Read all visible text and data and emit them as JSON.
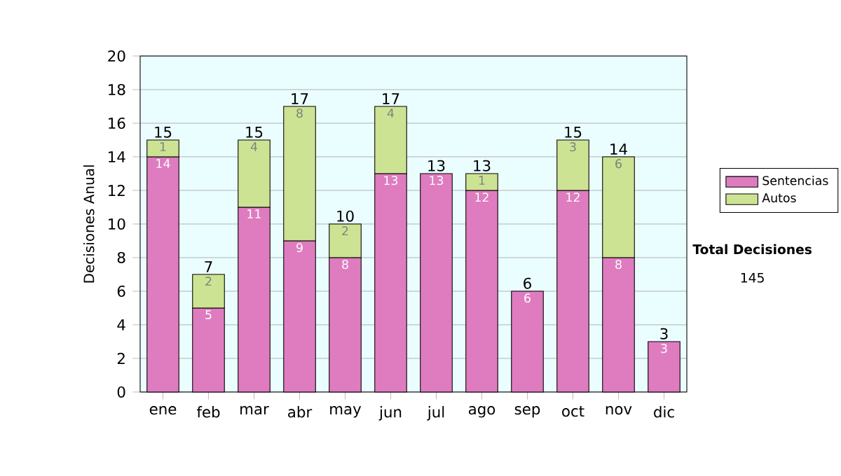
{
  "chart_data": {
    "type": "bar",
    "stacked": true,
    "ylabel": "Decisiones Anual",
    "categories": [
      "ene",
      "feb",
      "mar",
      "abr",
      "may",
      "jun",
      "jul",
      "ago",
      "sep",
      "oct",
      "nov",
      "dic"
    ],
    "series": [
      {
        "name": "Sentencias",
        "color": "#de7cbf",
        "values": [
          14,
          5,
          11,
          9,
          8,
          13,
          13,
          12,
          6,
          12,
          8,
          3
        ]
      },
      {
        "name": "Autos",
        "color": "#cde394",
        "values": [
          1,
          2,
          4,
          8,
          2,
          4,
          null,
          1,
          null,
          3,
          6,
          null
        ]
      }
    ],
    "totals": [
      "15",
      "7",
      "15",
      "17",
      "10",
      "17",
      "13",
      "13",
      "6",
      "15",
      "14",
      "3"
    ],
    "ylim": [
      0,
      20
    ],
    "yticks": [
      0,
      2,
      4,
      6,
      8,
      10,
      12,
      14,
      16,
      18,
      20
    ],
    "grid": "y",
    "legend": "right",
    "data_labels": true,
    "annotations": [
      "**Total Decisiones**",
      "145"
    ]
  }
}
